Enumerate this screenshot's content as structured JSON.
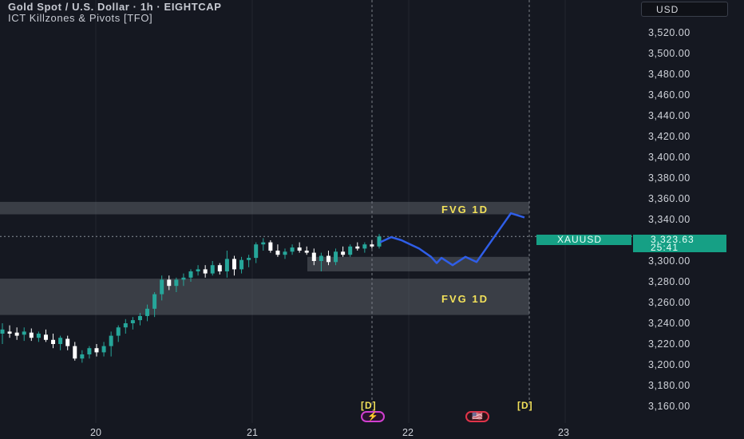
{
  "header": {
    "title": "Gold Spot / U.S. Dollar · 1h · EIGHTCAP",
    "indicator": "ICT Killzones & Pivots [TFO]"
  },
  "currency_button": "USD",
  "y_axis": {
    "labels": [
      "3,520.00",
      "3,500.00",
      "3,480.00",
      "3,460.00",
      "3,440.00",
      "3,420.00",
      "3,400.00",
      "3,380.00",
      "3,360.00",
      "3,340.00",
      "3,320.00",
      "3,300.00",
      "3,280.00",
      "3,260.00",
      "3,240.00",
      "3,220.00",
      "3,200.00",
      "3,180.00",
      "3,160.00"
    ],
    "ticks": [
      3520,
      3500,
      3480,
      3460,
      3440,
      3420,
      3400,
      3380,
      3360,
      3340,
      3320,
      3300,
      3280,
      3260,
      3240,
      3220,
      3200,
      3180,
      3160
    ]
  },
  "x_axis": {
    "labels": [
      "20",
      "21",
      "22",
      "23"
    ]
  },
  "price_tag": {
    "symbol": "XAUUSD",
    "price": "3,323.63",
    "countdown": "25:41",
    "value": 3323.63
  },
  "zones": [
    {
      "label": "FVG 1D",
      "top": 3357,
      "bottom": 3345
    },
    {
      "label": "FVG 1D",
      "top": 3283,
      "bottom": 3248
    },
    {
      "label": "",
      "top": 3304,
      "bottom": 3290
    }
  ],
  "markers": {
    "d1": "[D]",
    "d2": "[D]"
  },
  "events": {
    "lightning": "⚡",
    "us": "🇺🇸"
  },
  "colors": {
    "bull": "#26a69a",
    "bear": "#ffffff",
    "projection": "#2f5ee8",
    "zone": "#4a4d55",
    "background": "#151821"
  },
  "chart_data": {
    "type": "candlestick",
    "title": "Gold Spot / U.S. Dollar · 1h · EIGHTCAP",
    "x_labels": [
      "20",
      "21",
      "22",
      "23"
    ],
    "ylim": [
      3150,
      3530
    ],
    "candles": [
      {
        "o": 3230,
        "h": 3240,
        "l": 3220,
        "c": 3234
      },
      {
        "o": 3232,
        "h": 3238,
        "l": 3226,
        "c": 3230
      },
      {
        "o": 3231,
        "h": 3236,
        "l": 3224,
        "c": 3228
      },
      {
        "o": 3229,
        "h": 3236,
        "l": 3223,
        "c": 3232
      },
      {
        "o": 3231,
        "h": 3235,
        "l": 3223,
        "c": 3226
      },
      {
        "o": 3226,
        "h": 3232,
        "l": 3222,
        "c": 3230
      },
      {
        "o": 3229,
        "h": 3234,
        "l": 3222,
        "c": 3224
      },
      {
        "o": 3224,
        "h": 3230,
        "l": 3216,
        "c": 3220
      },
      {
        "o": 3220,
        "h": 3228,
        "l": 3214,
        "c": 3226
      },
      {
        "o": 3225,
        "h": 3228,
        "l": 3214,
        "c": 3218
      },
      {
        "o": 3218,
        "h": 3222,
        "l": 3204,
        "c": 3206
      },
      {
        "o": 3206,
        "h": 3214,
        "l": 3202,
        "c": 3210
      },
      {
        "o": 3210,
        "h": 3218,
        "l": 3206,
        "c": 3216
      },
      {
        "o": 3216,
        "h": 3220,
        "l": 3208,
        "c": 3212
      },
      {
        "o": 3212,
        "h": 3222,
        "l": 3208,
        "c": 3218
      },
      {
        "o": 3218,
        "h": 3232,
        "l": 3208,
        "c": 3228
      },
      {
        "o": 3228,
        "h": 3238,
        "l": 3222,
        "c": 3236
      },
      {
        "o": 3236,
        "h": 3244,
        "l": 3230,
        "c": 3240
      },
      {
        "o": 3240,
        "h": 3246,
        "l": 3234,
        "c": 3243
      },
      {
        "o": 3243,
        "h": 3250,
        "l": 3238,
        "c": 3247
      },
      {
        "o": 3247,
        "h": 3258,
        "l": 3242,
        "c": 3254
      },
      {
        "o": 3254,
        "h": 3270,
        "l": 3246,
        "c": 3268
      },
      {
        "o": 3268,
        "h": 3286,
        "l": 3262,
        "c": 3282
      },
      {
        "o": 3282,
        "h": 3286,
        "l": 3272,
        "c": 3276
      },
      {
        "o": 3276,
        "h": 3284,
        "l": 3270,
        "c": 3282
      },
      {
        "o": 3282,
        "h": 3288,
        "l": 3276,
        "c": 3284
      },
      {
        "o": 3284,
        "h": 3292,
        "l": 3280,
        "c": 3290
      },
      {
        "o": 3290,
        "h": 3296,
        "l": 3286,
        "c": 3292
      },
      {
        "o": 3292,
        "h": 3296,
        "l": 3284,
        "c": 3288
      },
      {
        "o": 3288,
        "h": 3300,
        "l": 3286,
        "c": 3296
      },
      {
        "o": 3296,
        "h": 3298,
        "l": 3287,
        "c": 3290
      },
      {
        "o": 3290,
        "h": 3310,
        "l": 3284,
        "c": 3302
      },
      {
        "o": 3302,
        "h": 3305,
        "l": 3286,
        "c": 3292
      },
      {
        "o": 3292,
        "h": 3304,
        "l": 3288,
        "c": 3301
      },
      {
        "o": 3301,
        "h": 3306,
        "l": 3294,
        "c": 3303
      },
      {
        "o": 3303,
        "h": 3318,
        "l": 3298,
        "c": 3316
      },
      {
        "o": 3316,
        "h": 3322,
        "l": 3310,
        "c": 3318
      },
      {
        "o": 3318,
        "h": 3320,
        "l": 3308,
        "c": 3310
      },
      {
        "o": 3310,
        "h": 3316,
        "l": 3304,
        "c": 3306
      },
      {
        "o": 3306,
        "h": 3312,
        "l": 3302,
        "c": 3309
      },
      {
        "o": 3309,
        "h": 3316,
        "l": 3306,
        "c": 3313
      },
      {
        "o": 3313,
        "h": 3318,
        "l": 3308,
        "c": 3310
      },
      {
        "o": 3310,
        "h": 3314,
        "l": 3306,
        "c": 3308
      },
      {
        "o": 3308,
        "h": 3312,
        "l": 3296,
        "c": 3300
      },
      {
        "o": 3300,
        "h": 3308,
        "l": 3290,
        "c": 3305
      },
      {
        "o": 3305,
        "h": 3310,
        "l": 3296,
        "c": 3299
      },
      {
        "o": 3299,
        "h": 3312,
        "l": 3296,
        "c": 3309
      },
      {
        "o": 3309,
        "h": 3314,
        "l": 3304,
        "c": 3306
      },
      {
        "o": 3306,
        "h": 3316,
        "l": 3304,
        "c": 3314
      },
      {
        "o": 3314,
        "h": 3318,
        "l": 3310,
        "c": 3312
      },
      {
        "o": 3312,
        "h": 3318,
        "l": 3308,
        "c": 3316
      },
      {
        "o": 3316,
        "h": 3320,
        "l": 3312,
        "c": 3314
      },
      {
        "o": 3314,
        "h": 3326,
        "l": 3312,
        "c": 3323.6
      }
    ],
    "projection_path": [
      3318,
      3323,
      3320,
      3312,
      3304,
      3298,
      3303,
      3296,
      3304,
      3299,
      3346,
      3342
    ]
  }
}
